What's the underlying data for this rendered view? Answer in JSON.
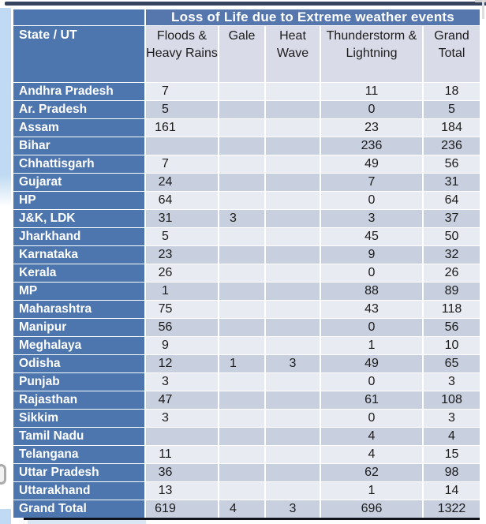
{
  "title": "Loss of Life due to Extreme weather events",
  "table": {
    "state_header": "State / UT",
    "columns": [
      "Floods & Heavy Rains",
      "Gale",
      "Heat Wave",
      "Thunderstorm & Lightning",
      "Grand Total"
    ],
    "rows": [
      {
        "state": "Andhra Pradesh",
        "values": [
          "7",
          "",
          "",
          "11",
          "18"
        ]
      },
      {
        "state": "Ar. Pradesh",
        "values": [
          "5",
          "",
          "",
          "0",
          "5"
        ]
      },
      {
        "state": "Assam",
        "values": [
          "161",
          "",
          "",
          "23",
          "184"
        ]
      },
      {
        "state": "Bihar",
        "values": [
          "",
          "",
          "",
          "236",
          "236"
        ]
      },
      {
        "state": "Chhattisgarh",
        "values": [
          "7",
          "",
          "",
          "49",
          "56"
        ]
      },
      {
        "state": "Gujarat",
        "values": [
          "24",
          "",
          "",
          "7",
          "31"
        ]
      },
      {
        "state": "HP",
        "values": [
          "64",
          "",
          "",
          "0",
          "64"
        ]
      },
      {
        "state": "J&K, LDK",
        "values": [
          "31",
          "3",
          "",
          "3",
          "37"
        ]
      },
      {
        "state": "Jharkhand",
        "values": [
          "5",
          "",
          "",
          "45",
          "50"
        ]
      },
      {
        "state": "Karnataka",
        "values": [
          "23",
          "",
          "",
          "9",
          "32"
        ]
      },
      {
        "state": "Kerala",
        "values": [
          "26",
          "",
          "",
          "0",
          "26"
        ]
      },
      {
        "state": "MP",
        "values": [
          "1",
          "",
          "",
          "88",
          "89"
        ]
      },
      {
        "state": "Maharashtra",
        "values": [
          "75",
          "",
          "",
          "43",
          "118"
        ]
      },
      {
        "state": "Manipur",
        "values": [
          "56",
          "",
          "",
          "0",
          "56"
        ]
      },
      {
        "state": "Meghalaya",
        "values": [
          "9",
          "",
          "",
          "1",
          "10"
        ]
      },
      {
        "state": "Odisha",
        "values": [
          "12",
          "1",
          "3",
          "49",
          "65"
        ]
      },
      {
        "state": "Punjab",
        "values": [
          "3",
          "",
          "",
          "0",
          "3"
        ]
      },
      {
        "state": "Rajasthan",
        "values": [
          "47",
          "",
          "",
          "61",
          "108"
        ]
      },
      {
        "state": "Sikkim",
        "values": [
          "3",
          "",
          "",
          "0",
          "3"
        ]
      },
      {
        "state": "Tamil Nadu",
        "values": [
          "",
          "",
          "",
          "4",
          "4"
        ]
      },
      {
        "state": "Telangana",
        "values": [
          "11",
          "",
          "",
          "4",
          "15"
        ]
      },
      {
        "state": "Uttar Pradesh",
        "values": [
          "36",
          "",
          "",
          "62",
          "98"
        ]
      },
      {
        "state": "Uttarakhand",
        "values": [
          "13",
          "",
          "",
          "1",
          "14"
        ]
      },
      {
        "state": "Grand Total",
        "values": [
          "619",
          "4",
          "3",
          "696",
          "1322"
        ]
      }
    ]
  },
  "chart_data": {
    "type": "table",
    "title": "Loss of Life due to Extreme weather events",
    "categories": [
      "Floods & Heavy Rains",
      "Gale",
      "Heat Wave",
      "Thunderstorm & Lightning",
      "Grand Total"
    ],
    "grand_total_row": [
      619,
      4,
      3,
      696,
      1322
    ]
  },
  "colors": {
    "header_blue": "#4e76ae",
    "title_blue": "#5577ae",
    "column_header_bg": "#d9dce8",
    "row_light": "#e9ebf2",
    "row_dark": "#c8cfdf",
    "top_edge_bar": "#35435f",
    "left_margin_strip": "#bfdaf2",
    "bottom_rule": "#10131c",
    "value_text": "#1b1b1b"
  }
}
